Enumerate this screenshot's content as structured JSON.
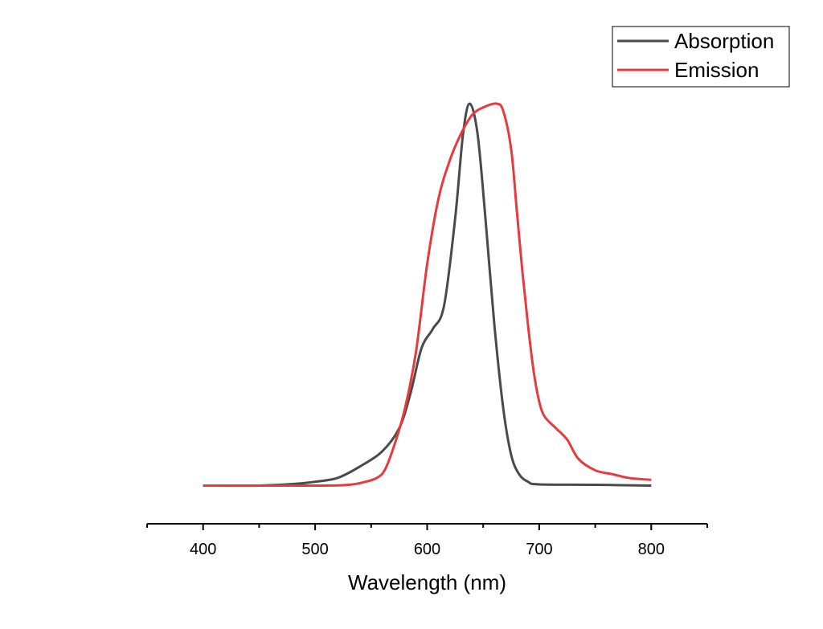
{
  "chart_data": {
    "type": "line",
    "title": "",
    "xlabel": "Wavelength (nm)",
    "ylabel": "",
    "xlim": [
      350,
      850
    ],
    "ylim": [
      -0.1,
      1.04
    ],
    "x_ticks": [
      400,
      500,
      600,
      700,
      800
    ],
    "x_tick_labels": [
      "400",
      "500",
      "600",
      "700",
      "800"
    ],
    "y_axis_visible": false,
    "grid": false,
    "legend_position": "top-right",
    "series": [
      {
        "name": "Absorption",
        "color": "#4a4a4a",
        "points": [
          [
            400,
            0.0
          ],
          [
            450,
            0.0
          ],
          [
            480,
            0.004
          ],
          [
            500,
            0.01
          ],
          [
            520,
            0.02
          ],
          [
            540,
            0.05
          ],
          [
            560,
            0.09
          ],
          [
            575,
            0.15
          ],
          [
            585,
            0.24
          ],
          [
            595,
            0.36
          ],
          [
            605,
            0.41
          ],
          [
            615,
            0.47
          ],
          [
            625,
            0.7
          ],
          [
            632,
            0.92
          ],
          [
            638,
            1.0
          ],
          [
            645,
            0.92
          ],
          [
            652,
            0.7
          ],
          [
            660,
            0.42
          ],
          [
            668,
            0.2
          ],
          [
            675,
            0.08
          ],
          [
            682,
            0.03
          ],
          [
            690,
            0.01
          ],
          [
            700,
            0.003
          ],
          [
            750,
            0.002
          ],
          [
            800,
            0.0
          ]
        ]
      },
      {
        "name": "Emission",
        "color": "#e8393e",
        "points": [
          [
            400,
            0.0
          ],
          [
            500,
            0.0
          ],
          [
            530,
            0.002
          ],
          [
            545,
            0.01
          ],
          [
            555,
            0.02
          ],
          [
            562,
            0.04
          ],
          [
            570,
            0.1
          ],
          [
            580,
            0.2
          ],
          [
            590,
            0.35
          ],
          [
            600,
            0.58
          ],
          [
            610,
            0.75
          ],
          [
            620,
            0.85
          ],
          [
            630,
            0.92
          ],
          [
            640,
            0.97
          ],
          [
            650,
            0.99
          ],
          [
            662,
            1.0
          ],
          [
            668,
            0.98
          ],
          [
            675,
            0.88
          ],
          [
            680,
            0.72
          ],
          [
            685,
            0.56
          ],
          [
            690,
            0.42
          ],
          [
            695,
            0.3
          ],
          [
            700,
            0.22
          ],
          [
            705,
            0.18
          ],
          [
            715,
            0.15
          ],
          [
            725,
            0.12
          ],
          [
            735,
            0.07
          ],
          [
            750,
            0.04
          ],
          [
            765,
            0.03
          ],
          [
            780,
            0.02
          ],
          [
            800,
            0.015
          ]
        ]
      }
    ]
  }
}
